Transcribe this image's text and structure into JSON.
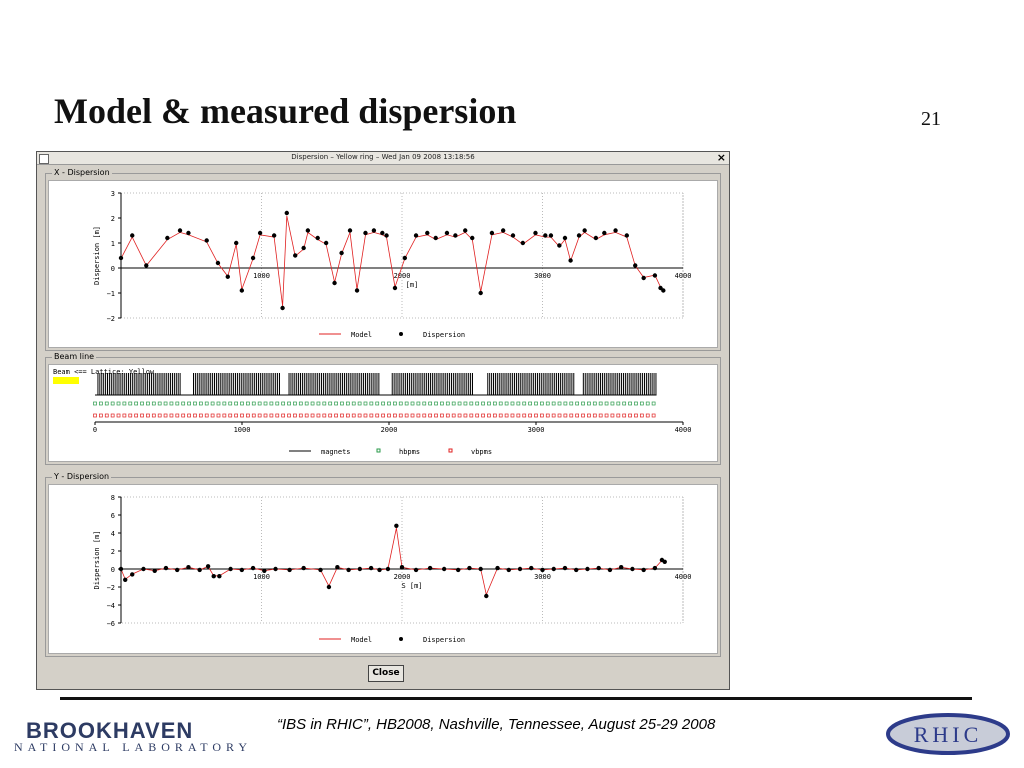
{
  "slide": {
    "title": "Model & measured dispersion",
    "number": "21",
    "footer": "“IBS in RHIC”, HB2008, Nashville, Tennessee, August 25-29  2008"
  },
  "logos": {
    "bnl_top": "BROOKHAVEN",
    "bnl_bottom": "NATIONAL LABORATORY",
    "rhic": "RHIC"
  },
  "window": {
    "title": "Dispersion – Yellow ring – Wed Jan 09 2008 13:18:56",
    "close_icon": "×",
    "close_button": "Close"
  },
  "x_panel": {
    "group_label": "X - Dispersion",
    "ylabel": "Dispersion [m]",
    "xlabel": "[m]",
    "y_ticks": [
      "3",
      "2",
      "1",
      "0",
      "−1",
      "−2"
    ],
    "x_ticks": [
      "1000",
      "2000",
      "3000",
      "4000"
    ],
    "legend": [
      "Model",
      "Dispersion"
    ]
  },
  "beam_panel": {
    "group_label": "Beam line",
    "header": "Beam <==    Lattice: Yellow",
    "swatch_color": "#ffff00",
    "x_ticks": [
      "0",
      "1000",
      "2000",
      "3000",
      "4000"
    ],
    "legend": [
      "magnets",
      "hbpms",
      "vbpms"
    ]
  },
  "y_panel": {
    "group_label": "Y - Dispersion",
    "ylabel": "Dispersion [m]",
    "xlabel": "S [m]",
    "y_ticks": [
      "8",
      "6",
      "4",
      "2",
      "0",
      "−2",
      "−4",
      "−6"
    ],
    "x_ticks": [
      "1000",
      "2000",
      "3000",
      "4000"
    ],
    "legend": [
      "Model",
      "Dispersion"
    ]
  },
  "colors": {
    "model": "#e02020",
    "points": "#000000",
    "hbpms": "#2a9a4a",
    "vbpms": "#e02020",
    "rhic": "#2d3b8a"
  },
  "chart_data": [
    {
      "type": "scatter",
      "title": "X - Dispersion",
      "xlabel": "[m]",
      "ylabel": "Dispersion [m]",
      "xlim": [
        0,
        4000
      ],
      "ylim": [
        -2,
        3
      ],
      "series": [
        {
          "name": "Dispersion",
          "x": [
            0,
            80,
            180,
            330,
            420,
            480,
            610,
            690,
            760,
            820,
            860,
            940,
            990,
            1090,
            1150,
            1180,
            1240,
            1300,
            1330,
            1400,
            1460,
            1520,
            1570,
            1630,
            1680,
            1740,
            1800,
            1860,
            1890,
            1950,
            2020,
            2100,
            2180,
            2240,
            2320,
            2380,
            2450,
            2500,
            2560,
            2640,
            2720,
            2790,
            2860,
            2950,
            3020,
            3060,
            3120,
            3160,
            3200,
            3260,
            3300,
            3380,
            3440,
            3520,
            3600,
            3660,
            3720,
            3800,
            3840,
            3860
          ],
          "y": [
            0.4,
            1.3,
            0.1,
            1.2,
            1.5,
            1.4,
            1.1,
            0.2,
            -0.35,
            1.0,
            -0.9,
            0.4,
            1.4,
            1.3,
            -1.6,
            2.2,
            0.5,
            0.8,
            1.5,
            1.2,
            1.0,
            -0.6,
            0.6,
            1.5,
            -0.9,
            1.4,
            1.5,
            1.4,
            1.3,
            -0.8,
            0.4,
            1.3,
            1.4,
            1.2,
            1.4,
            1.3,
            1.5,
            1.2,
            -1.0,
            1.4,
            1.5,
            1.3,
            1.0,
            1.4,
            1.3,
            1.3,
            0.9,
            1.2,
            0.3,
            1.3,
            1.5,
            1.2,
            1.4,
            1.5,
            1.3,
            0.1,
            -0.4,
            -0.3,
            -0.8,
            -0.9
          ]
        }
      ]
    },
    {
      "type": "scatter",
      "title": "Y - Dispersion",
      "xlabel": "S [m]",
      "ylabel": "Dispersion [m]",
      "xlim": [
        0,
        4000
      ],
      "ylim": [
        -6,
        8
      ],
      "series": [
        {
          "name": "Dispersion",
          "x": [
            0,
            30,
            80,
            160,
            240,
            320,
            400,
            480,
            560,
            620,
            660,
            700,
            780,
            860,
            940,
            1020,
            1100,
            1200,
            1300,
            1420,
            1480,
            1540,
            1620,
            1700,
            1780,
            1840,
            1900,
            1960,
            2000,
            2100,
            2200,
            2300,
            2400,
            2480,
            2560,
            2600,
            2680,
            2760,
            2840,
            2920,
            3000,
            3080,
            3160,
            3240,
            3320,
            3400,
            3480,
            3560,
            3640,
            3720,
            3800,
            3850,
            3870
          ],
          "y": [
            0.0,
            -1.2,
            -0.6,
            0.0,
            -0.2,
            0.1,
            -0.1,
            0.2,
            -0.1,
            0.3,
            -0.8,
            -0.8,
            0.0,
            -0.1,
            0.1,
            -0.2,
            0.0,
            -0.1,
            0.1,
            -0.1,
            -2.0,
            0.2,
            -0.1,
            0.0,
            0.1,
            -0.1,
            0.0,
            4.8,
            0.2,
            -0.1,
            0.1,
            0.0,
            -0.1,
            0.1,
            0.0,
            -3.0,
            0.1,
            -0.1,
            0.0,
            0.1,
            -0.1,
            0.0,
            0.1,
            -0.1,
            0.0,
            0.1,
            -0.1,
            0.2,
            0.0,
            -0.1,
            0.1,
            1.0,
            0.8
          ]
        }
      ]
    }
  ]
}
